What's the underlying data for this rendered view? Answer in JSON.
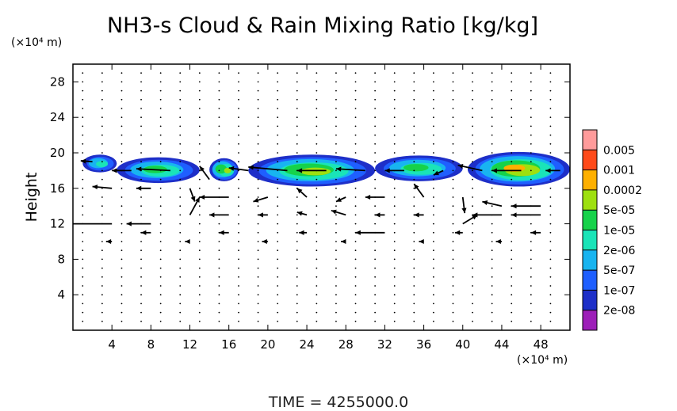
{
  "chart_data": {
    "type": "heatmap",
    "title": "NH3-s Cloud & Rain Mixing Ratio [kg/kg]",
    "xlabel": "",
    "ylabel": "Height",
    "x_unit": "(×10⁴ m)",
    "y_unit": "(×10⁴ m)",
    "xlim": [
      0,
      51
    ],
    "ylim": [
      0,
      30
    ],
    "x_ticks": [
      "4",
      "8",
      "12",
      "16",
      "20",
      "24",
      "28",
      "32",
      "36",
      "40",
      "44",
      "48"
    ],
    "y_ticks": [
      "4",
      "8",
      "12",
      "16",
      "20",
      "24",
      "28"
    ],
    "time_label": "TIME = 4255000.0",
    "colorbar": {
      "levels": [
        "2e-08",
        "1e-07",
        "5e-07",
        "2e-06",
        "1e-05",
        "5e-05",
        "0.0002",
        "0.001",
        "0.005"
      ],
      "colors": [
        "#9d1fb8",
        "#1e2fc8",
        "#1f5fff",
        "#18b4f0",
        "#1ae4b8",
        "#16d24a",
        "#9ee010",
        "#ffb000",
        "#ff4a1a",
        "#ff9b9b"
      ]
    },
    "field_regions": [
      {
        "x": [
          1,
          4.5
        ],
        "y": [
          17.8,
          19.8
        ],
        "peak_level": "2e-06"
      },
      {
        "x": [
          4.5,
          13
        ],
        "y": [
          16.6,
          19.5
        ],
        "peak_level": "1e-05"
      },
      {
        "x": [
          14,
          17
        ],
        "y": [
          16.8,
          19.4
        ],
        "peak_level": "5e-05"
      },
      {
        "x": [
          18,
          31
        ],
        "y": [
          16.2,
          19.8
        ],
        "peak_level": "5e-05"
      },
      {
        "x": [
          31,
          40
        ],
        "y": [
          16.8,
          19.7
        ],
        "peak_level": "1e-05"
      },
      {
        "x": [
          40.5,
          51
        ],
        "y": [
          16.2,
          20.1
        ],
        "peak_level": "0.0002"
      }
    ],
    "wind_vectors": [
      {
        "x": 2,
        "y": 19,
        "u": -1.2,
        "v": 0.1
      },
      {
        "x": 6,
        "y": 18,
        "u": -2.0,
        "v": 0.0
      },
      {
        "x": 10,
        "y": 18,
        "u": -3.5,
        "v": 0.2
      },
      {
        "x": 14,
        "y": 17,
        "u": -1.0,
        "v": 1.5
      },
      {
        "x": 18,
        "y": 18,
        "u": -2.0,
        "v": 0.3
      },
      {
        "x": 22,
        "y": 18,
        "u": -4.0,
        "v": 0.4
      },
      {
        "x": 26,
        "y": 18,
        "u": -3.0,
        "v": 0.0
      },
      {
        "x": 30,
        "y": 18,
        "u": -3.0,
        "v": 0.2
      },
      {
        "x": 34,
        "y": 18,
        "u": -2.0,
        "v": 0.0
      },
      {
        "x": 38,
        "y": 18,
        "u": -1.0,
        "v": -0.5
      },
      {
        "x": 42,
        "y": 18,
        "u": -2.5,
        "v": 0.6
      },
      {
        "x": 46,
        "y": 18,
        "u": -3.0,
        "v": 0.0
      },
      {
        "x": 50,
        "y": 18,
        "u": -1.5,
        "v": 0.0
      },
      {
        "x": 4,
        "y": 16,
        "u": -2.0,
        "v": 0.2
      },
      {
        "x": 8,
        "y": 16,
        "u": -1.5,
        "v": 0.0
      },
      {
        "x": 12,
        "y": 16,
        "u": 0.5,
        "v": -1.5
      },
      {
        "x": 16,
        "y": 15,
        "u": -3.0,
        "v": 0.0
      },
      {
        "x": 20,
        "y": 15,
        "u": -1.5,
        "v": -0.5
      },
      {
        "x": 24,
        "y": 15,
        "u": -1.0,
        "v": 1.0
      },
      {
        "x": 28,
        "y": 15,
        "u": -1.0,
        "v": -0.5
      },
      {
        "x": 32,
        "y": 15,
        "u": -2.0,
        "v": 0.0
      },
      {
        "x": 36,
        "y": 15,
        "u": -1.0,
        "v": 1.5
      },
      {
        "x": 40,
        "y": 15,
        "u": 0.2,
        "v": -1.8
      },
      {
        "x": 44,
        "y": 14,
        "u": -2.0,
        "v": 0.5
      },
      {
        "x": 48,
        "y": 14,
        "u": -3.0,
        "v": 0.0
      },
      {
        "x": 4,
        "y": 12,
        "u": -5.0,
        "v": 0.0
      },
      {
        "x": 8,
        "y": 12,
        "u": -2.5,
        "v": 0.0
      },
      {
        "x": 12,
        "y": 13,
        "u": 1.0,
        "v": 2.0
      },
      {
        "x": 16,
        "y": 13,
        "u": -2.0,
        "v": 0.0
      },
      {
        "x": 20,
        "y": 13,
        "u": -1.0,
        "v": 0.0
      },
      {
        "x": 24,
        "y": 13,
        "u": -1.0,
        "v": 0.3
      },
      {
        "x": 28,
        "y": 13,
        "u": -1.5,
        "v": 0.5
      },
      {
        "x": 32,
        "y": 13,
        "u": -1.0,
        "v": 0.0
      },
      {
        "x": 36,
        "y": 13,
        "u": -1.0,
        "v": 0.0
      },
      {
        "x": 40,
        "y": 12,
        "u": 1.5,
        "v": 1.0
      },
      {
        "x": 44,
        "y": 13,
        "u": -3.0,
        "v": 0.0
      },
      {
        "x": 48,
        "y": 13,
        "u": -3.0,
        "v": 0.0
      },
      {
        "x": 8,
        "y": 11,
        "u": -1.0,
        "v": 0.0
      },
      {
        "x": 16,
        "y": 11,
        "u": -1.0,
        "v": 0.0
      },
      {
        "x": 24,
        "y": 11,
        "u": -0.8,
        "v": 0.0
      },
      {
        "x": 32,
        "y": 11,
        "u": -3.0,
        "v": 0.0
      },
      {
        "x": 40,
        "y": 11,
        "u": -0.8,
        "v": 0.0
      },
      {
        "x": 48,
        "y": 11,
        "u": -1.0,
        "v": 0.0
      },
      {
        "x": 4,
        "y": 10,
        "u": -0.6,
        "v": 0.0
      },
      {
        "x": 12,
        "y": 10,
        "u": -0.5,
        "v": 0.0
      },
      {
        "x": 20,
        "y": 10,
        "u": -0.6,
        "v": 0.0
      },
      {
        "x": 28,
        "y": 10,
        "u": -0.5,
        "v": 0.0
      },
      {
        "x": 36,
        "y": 10,
        "u": -0.5,
        "v": 0.0
      },
      {
        "x": 44,
        "y": 10,
        "u": -0.6,
        "v": 0.0
      }
    ]
  }
}
